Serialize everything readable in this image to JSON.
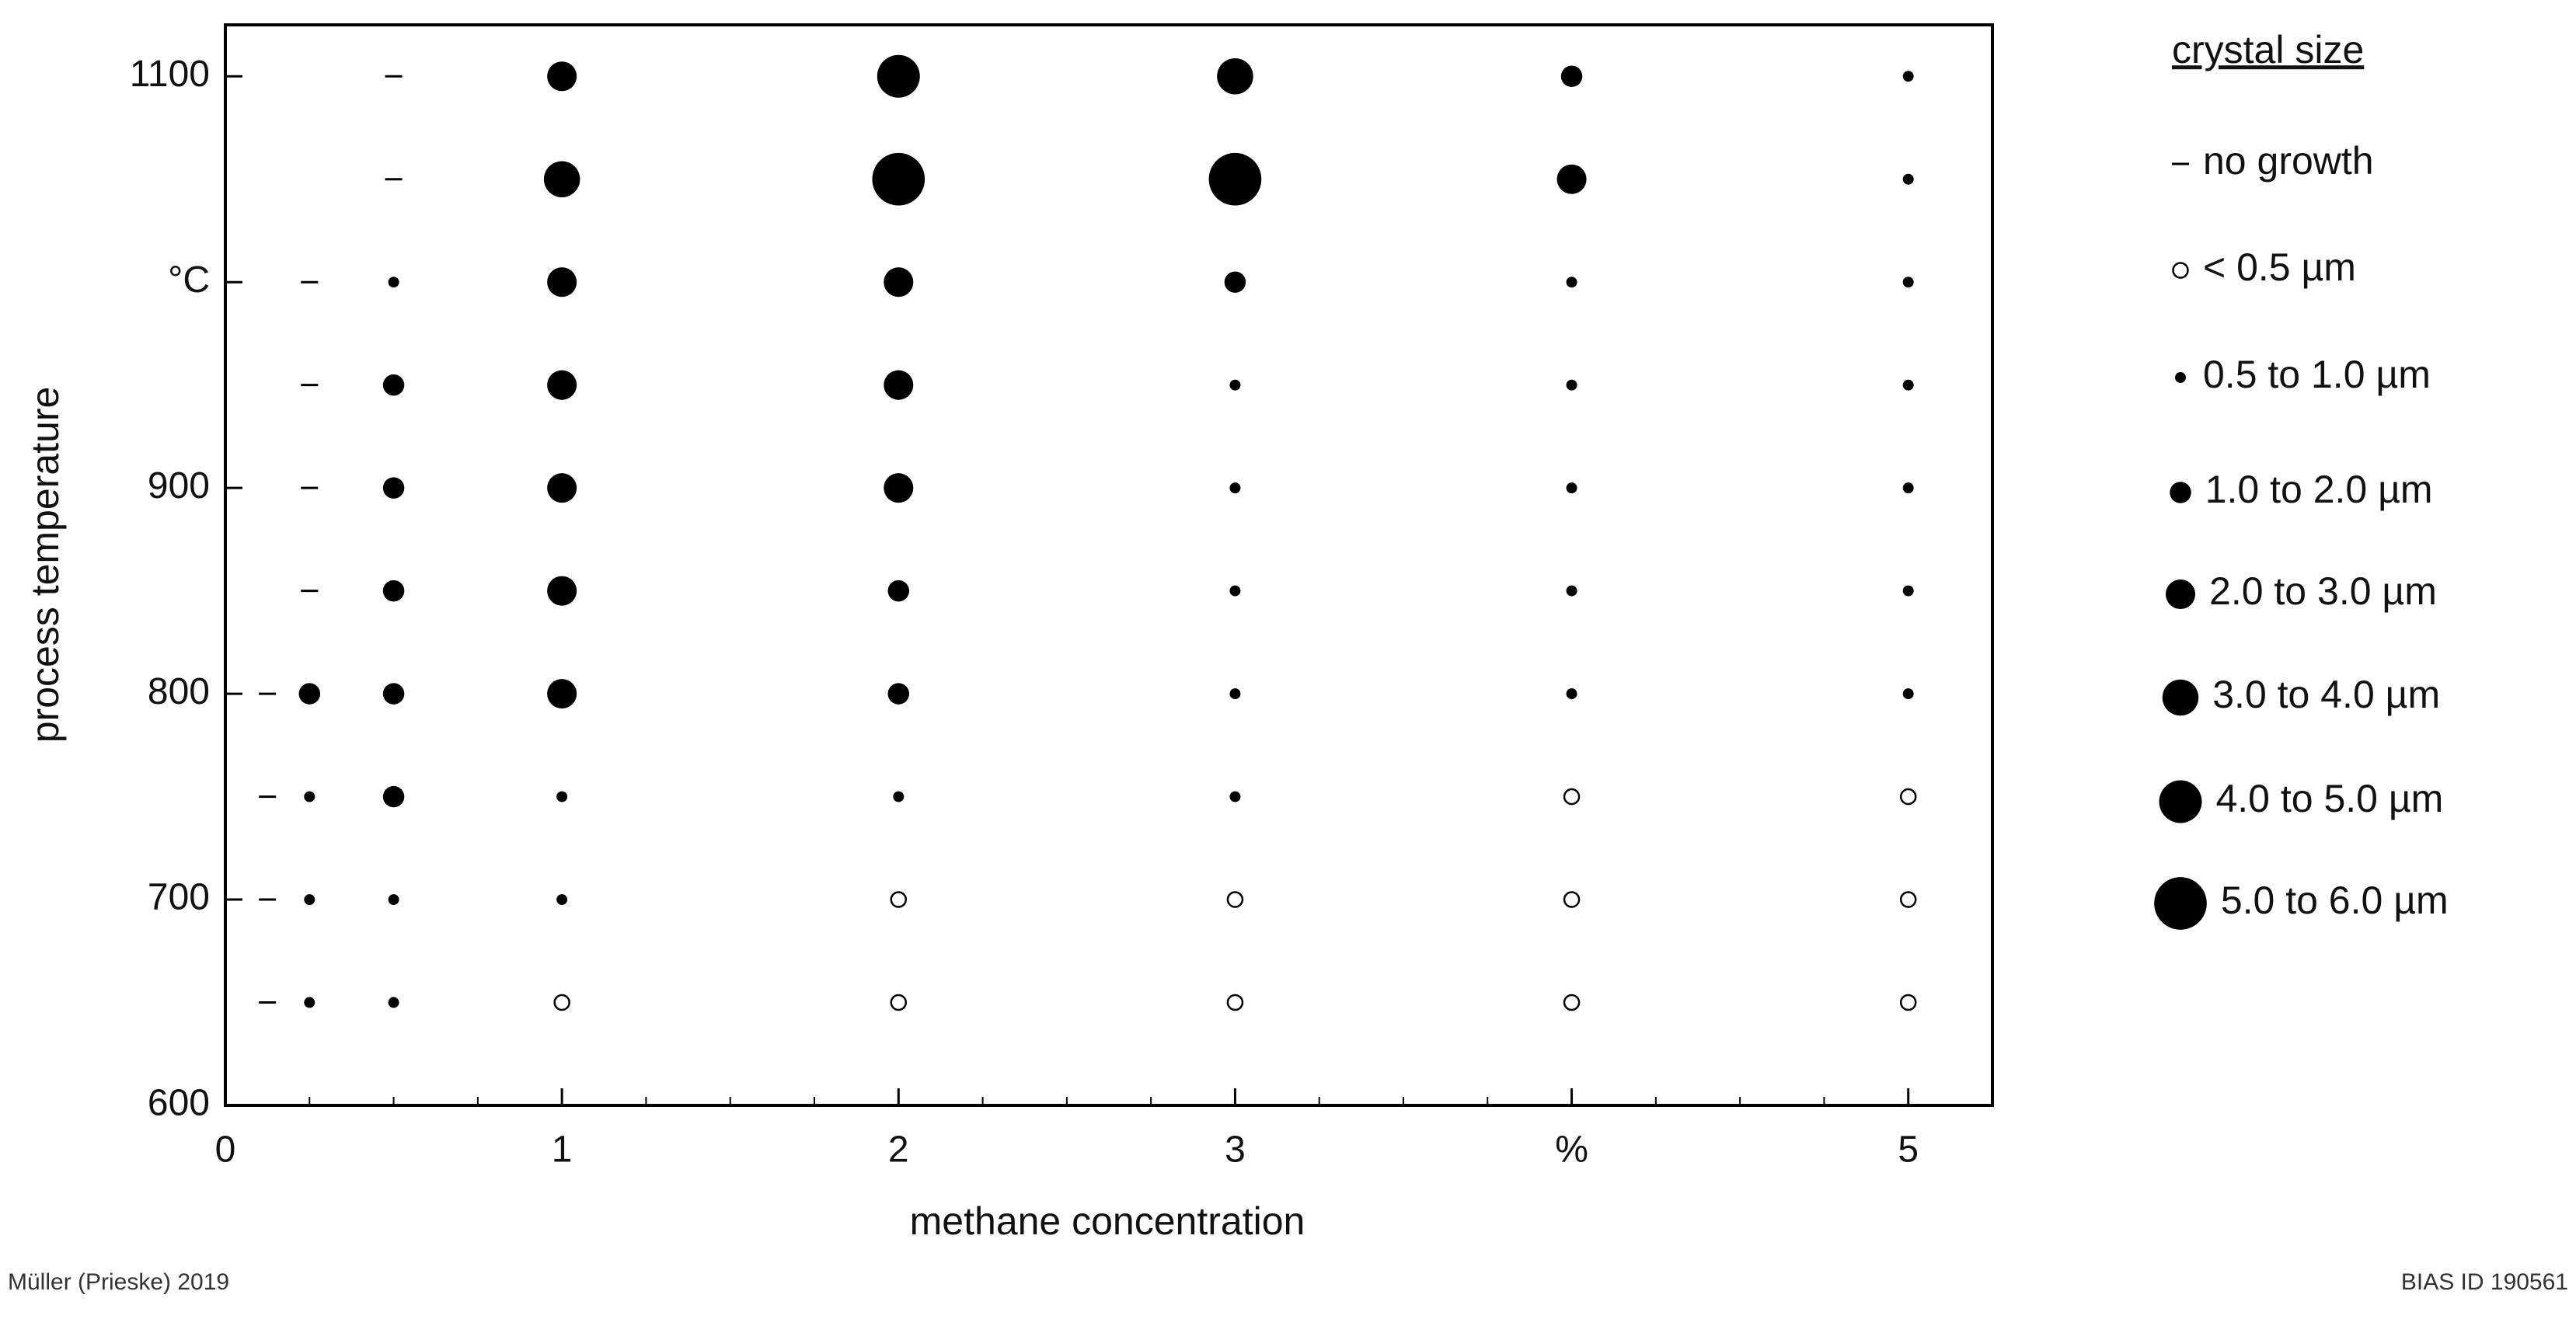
{
  "chart_data": {
    "type": "scatter",
    "x_label": "methane concentration",
    "y_label": "process temperature",
    "xlim": [
      0,
      5.25
    ],
    "ylim": [
      600,
      1125
    ],
    "xticks": [
      0,
      1,
      2,
      3,
      {
        "value": 4,
        "label": "%"
      },
      5
    ],
    "xminorticks": [
      0.25,
      0.5,
      0.75,
      1.25,
      1.5,
      1.75,
      2.25,
      2.5,
      2.75,
      3.25,
      3.5,
      3.75,
      4.25,
      4.5,
      4.75,
      5.25
    ],
    "yticks": [
      600,
      700,
      800,
      900,
      {
        "value": 1000,
        "label": "°C"
      },
      1100
    ],
    "legend_title": "crystal size",
    "legend_position": "right",
    "series": [
      {
        "name": "no growth",
        "color": "#000000",
        "x": [
          0.125,
          0.125,
          0.125,
          0.125,
          0.25,
          0.25,
          0.25,
          0.25,
          0.5,
          0.5
        ],
        "y": [
          650,
          700,
          750,
          800,
          850,
          900,
          950,
          1000,
          1050,
          1100
        ]
      },
      {
        "name": "< 0.5 µm",
        "color": "#000000",
        "x": [
          1,
          2,
          3,
          4,
          5,
          2,
          3,
          4,
          5,
          4,
          5
        ],
        "y": [
          650,
          650,
          650,
          650,
          650,
          700,
          700,
          700,
          700,
          750,
          750
        ]
      },
      {
        "name": "0.5 to 1.0 µm",
        "color": "#000000",
        "x": [
          0.25,
          0.5,
          0.25,
          0.5,
          1,
          0.25,
          1,
          2,
          3,
          3,
          4,
          5,
          3,
          4,
          5,
          3,
          4,
          5,
          3,
          4,
          5,
          0.5,
          4,
          5,
          5,
          5
        ],
        "y": [
          650,
          650,
          700,
          700,
          700,
          750,
          750,
          750,
          750,
          800,
          800,
          800,
          850,
          850,
          850,
          900,
          900,
          900,
          950,
          950,
          950,
          1000,
          1000,
          1000,
          1050,
          1100
        ]
      },
      {
        "name": "1.0 to 2.0 µm",
        "color": "#000000",
        "x": [
          0.5,
          0.25,
          0.5,
          2,
          0.5,
          2,
          0.5,
          0.5,
          3,
          4
        ],
        "y": [
          750,
          800,
          800,
          800,
          850,
          850,
          900,
          950,
          1000,
          1100
        ]
      },
      {
        "name": "2.0 to 3.0 µm",
        "color": "#000000",
        "x": [
          1,
          1,
          1,
          2,
          1,
          2,
          1,
          2,
          4,
          1
        ],
        "y": [
          800,
          850,
          900,
          900,
          950,
          950,
          1000,
          1000,
          1050,
          1100
        ]
      },
      {
        "name": "3.0 to 4.0 µm",
        "color": "#000000",
        "x": [
          1,
          3
        ],
        "y": [
          1050,
          1100
        ]
      },
      {
        "name": "4.0 to 5.0 µm",
        "color": "#000000",
        "x": [
          2
        ],
        "y": [
          1100
        ]
      },
      {
        "name": "5.0 to 6.0 µm",
        "color": "#000000",
        "x": [
          2,
          3
        ],
        "y": [
          1050,
          1050
        ]
      }
    ],
    "footer_left": "Müller (Prieske) 2019",
    "footer_right": "BIAS ID 190561"
  }
}
